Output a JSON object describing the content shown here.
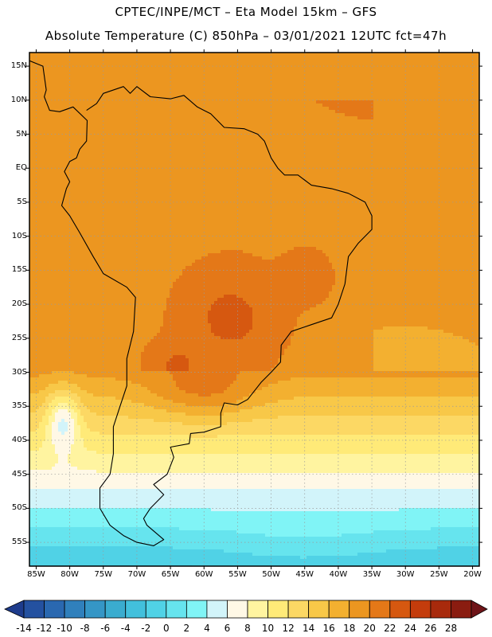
{
  "header": {
    "line1": "CPTEC/INPE/MCT –  Eta Model 15km – GFS",
    "line2": "Absolute Temperature (C) 850hPa – 03/01/2021 12UTC fct=47h"
  },
  "map": {
    "extent": {
      "lon_min": -86,
      "lon_max": -19,
      "lat_min": -58.5,
      "lat_max": 17
    },
    "lat_labels": [
      {
        "lat": 15,
        "label": "15N"
      },
      {
        "lat": 10,
        "label": "10N"
      },
      {
        "lat": 5,
        "label": "5N"
      },
      {
        "lat": 0,
        "label": "EQ"
      },
      {
        "lat": -5,
        "label": "5S"
      },
      {
        "lat": -10,
        "label": "10S"
      },
      {
        "lat": -15,
        "label": "15S"
      },
      {
        "lat": -20,
        "label": "20S"
      },
      {
        "lat": -25,
        "label": "25S"
      },
      {
        "lat": -30,
        "label": "30S"
      },
      {
        "lat": -35,
        "label": "35S"
      },
      {
        "lat": -40,
        "label": "40S"
      },
      {
        "lat": -45,
        "label": "45S"
      },
      {
        "lat": -50,
        "label": "50S"
      },
      {
        "lat": -55,
        "label": "55S"
      }
    ],
    "lon_labels": [
      {
        "lon": -85,
        "label": "85W"
      },
      {
        "lon": -80,
        "label": "80W"
      },
      {
        "lon": -75,
        "label": "75W"
      },
      {
        "lon": -70,
        "label": "70W"
      },
      {
        "lon": -65,
        "label": "65W"
      },
      {
        "lon": -60,
        "label": "60W"
      },
      {
        "lon": -55,
        "label": "55W"
      },
      {
        "lon": -50,
        "label": "50W"
      },
      {
        "lon": -45,
        "label": "45W"
      },
      {
        "lon": -40,
        "label": "40W"
      },
      {
        "lon": -35,
        "label": "35W"
      },
      {
        "lon": -30,
        "label": "30W"
      },
      {
        "lon": -25,
        "label": "25W"
      },
      {
        "lon": -20,
        "label": "20W"
      }
    ],
    "continent_outline": [
      [
        -77.5,
        8.5
      ],
      [
        -76,
        9.5
      ],
      [
        -75,
        11
      ],
      [
        -72,
        12
      ],
      [
        -71,
        11
      ],
      [
        -70,
        12
      ],
      [
        -68,
        10.5
      ],
      [
        -65,
        10.2
      ],
      [
        -63,
        10.7
      ],
      [
        -61,
        9
      ],
      [
        -59,
        8
      ],
      [
        -57,
        6
      ],
      [
        -54,
        5.8
      ],
      [
        -52,
        5
      ],
      [
        -51,
        4
      ],
      [
        -50,
        1.5
      ],
      [
        -49,
        0
      ],
      [
        -48,
        -1
      ],
      [
        -46,
        -1
      ],
      [
        -44,
        -2.5
      ],
      [
        -41,
        -3
      ],
      [
        -38.5,
        -3.7
      ],
      [
        -36,
        -5
      ],
      [
        -35,
        -7
      ],
      [
        -35,
        -9
      ],
      [
        -37,
        -11
      ],
      [
        -38.5,
        -13
      ],
      [
        -39,
        -17
      ],
      [
        -40,
        -20
      ],
      [
        -41,
        -22
      ],
      [
        -44,
        -23
      ],
      [
        -47,
        -24
      ],
      [
        -48.5,
        -26
      ],
      [
        -48.6,
        -28.5
      ],
      [
        -50,
        -30
      ],
      [
        -51.5,
        -31.5
      ],
      [
        -53.5,
        -34
      ],
      [
        -55,
        -34.8
      ],
      [
        -57,
        -34.5
      ],
      [
        -57.5,
        -36
      ],
      [
        -57.5,
        -38
      ],
      [
        -60,
        -38.8
      ],
      [
        -62,
        -39
      ],
      [
        -62.2,
        -40.5
      ],
      [
        -65,
        -41
      ],
      [
        -64.5,
        -42.5
      ],
      [
        -65.5,
        -45
      ],
      [
        -67.5,
        -46.5
      ],
      [
        -66,
        -48
      ],
      [
        -68,
        -50
      ],
      [
        -69,
        -51.5
      ],
      [
        -68.5,
        -52.5
      ],
      [
        -66,
        -54.6
      ],
      [
        -67.5,
        -55.5
      ],
      [
        -70,
        -55
      ],
      [
        -72,
        -54
      ],
      [
        -74,
        -52.5
      ],
      [
        -75.5,
        -50
      ],
      [
        -75.5,
        -47
      ],
      [
        -74,
        -45
      ],
      [
        -73.5,
        -42
      ],
      [
        -73.5,
        -38
      ],
      [
        -72.5,
        -35
      ],
      [
        -71.5,
        -32
      ],
      [
        -71.5,
        -28
      ],
      [
        -70.5,
        -24
      ],
      [
        -70.2,
        -19
      ],
      [
        -71.5,
        -17.5
      ],
      [
        -75,
        -15.5
      ],
      [
        -76.5,
        -13
      ],
      [
        -78.5,
        -9.5
      ],
      [
        -80,
        -7
      ],
      [
        -81.2,
        -5.5
      ],
      [
        -80.5,
        -3
      ],
      [
        -80,
        -2
      ],
      [
        -80.8,
        -0.5
      ],
      [
        -80,
        1
      ],
      [
        -79,
        1.5
      ],
      [
        -78.5,
        2.8
      ],
      [
        -77.5,
        4
      ],
      [
        -77.4,
        7
      ],
      [
        -79.5,
        9
      ],
      [
        -81.5,
        8.3
      ],
      [
        -83,
        8.5
      ],
      [
        -83.8,
        10.5
      ],
      [
        -83.5,
        11.5
      ],
      [
        -84,
        15
      ],
      [
        -86,
        15.8
      ]
    ],
    "colorbar": {
      "labels": [
        "-14",
        "-12",
        "-10",
        "-8",
        "-6",
        "-4",
        "-2",
        "0",
        "2",
        "4",
        "6",
        "8",
        "10",
        "12",
        "14",
        "16",
        "18",
        "20",
        "22",
        "24",
        "26",
        "28"
      ],
      "colors": [
        "#1e3c8c",
        "#2451a0",
        "#2a68b0",
        "#3080bc",
        "#3596c6",
        "#3aaccf",
        "#42c0dc",
        "#50d2e6",
        "#66e4ee",
        "#80f4f6",
        "#d2f4fa",
        "#fff8e6",
        "#fff4a0",
        "#ffea78",
        "#fcd864",
        "#f8c848",
        "#f3b030",
        "#ec9620",
        "#e47818",
        "#d65810",
        "#c43c0c",
        "#a82a0c",
        "#8a1c10",
        "#6e1418"
      ],
      "min": -14,
      "step": 2
    }
  }
}
